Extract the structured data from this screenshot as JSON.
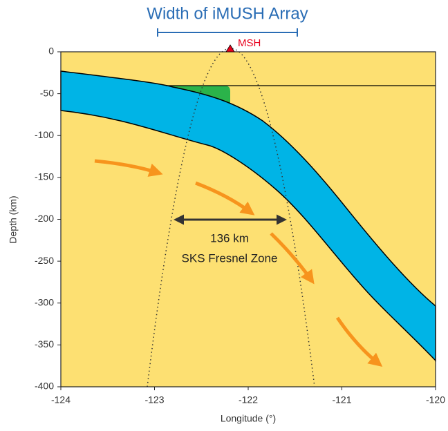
{
  "chart_data": {
    "type": "section",
    "title": "Width of iMUSH Array",
    "x_label": "Longitude (°)",
    "y_label": "Depth (km)",
    "xlim": [
      -124,
      -120
    ],
    "xticks": [
      -124,
      -123,
      -122,
      -121,
      -120
    ],
    "ylim": [
      -400,
      0
    ],
    "yticks": [
      0,
      -50,
      -100,
      -150,
      -200,
      -250,
      -300,
      -350,
      -400
    ],
    "annotations": {
      "volcano": "MSH",
      "width": "136 km",
      "zone": "SKS Fresnel Zone"
    }
  }
}
